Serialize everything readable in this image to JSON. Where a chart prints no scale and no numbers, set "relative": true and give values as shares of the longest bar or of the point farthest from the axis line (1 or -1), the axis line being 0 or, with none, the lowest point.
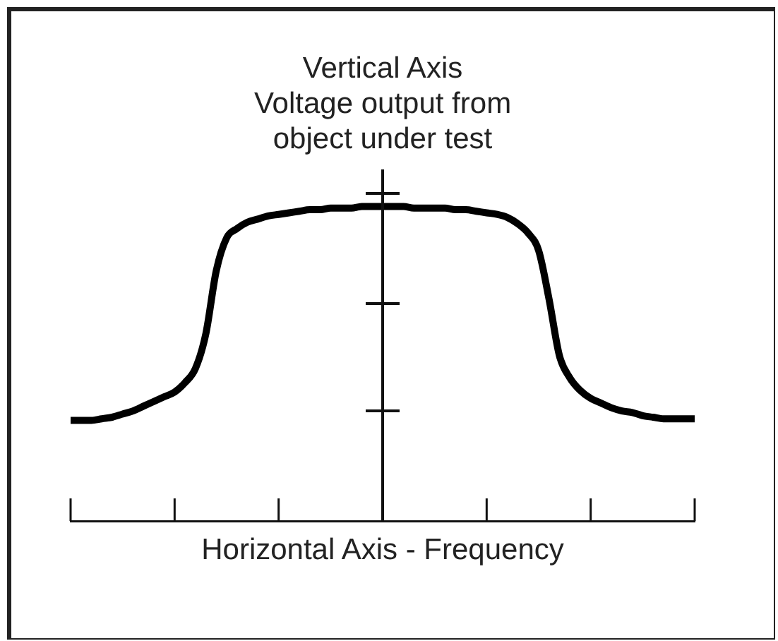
{
  "chart_data": {
    "type": "line",
    "xlabel": "Horizontal Axis - Frequency",
    "ylabel": "Vertical Axis\nVoltage output from\nobject under test",
    "relative": true,
    "line_style": "solid",
    "color": "#000000",
    "categories": [
      null,
      null,
      null,
      null,
      null,
      null,
      null,
      null,
      null,
      null,
      null,
      null,
      null,
      null,
      null,
      null,
      null,
      null,
      null,
      null,
      null,
      null,
      null,
      null,
      null,
      null,
      null,
      null,
      null,
      null,
      null,
      null,
      null,
      null,
      null,
      null,
      null,
      null,
      null,
      null,
      null,
      null,
      null,
      null,
      null,
      null,
      null,
      null,
      null,
      null,
      null,
      null,
      null,
      null,
      null,
      null,
      null,
      null,
      null,
      null,
      null
    ],
    "values": [
      0.32,
      0.32,
      0.32,
      0.325,
      0.33,
      0.34,
      0.35,
      0.365,
      0.38,
      0.395,
      0.41,
      0.44,
      0.485,
      0.595,
      0.795,
      0.9,
      0.93,
      0.95,
      0.96,
      0.97,
      0.975,
      0.98,
      0.985,
      0.99,
      0.99,
      0.995,
      0.995,
      0.995,
      1.0,
      1.0,
      1.0,
      1.0,
      1.0,
      0.995,
      0.995,
      0.995,
      0.995,
      0.99,
      0.99,
      0.985,
      0.98,
      0.975,
      0.965,
      0.945,
      0.915,
      0.86,
      0.705,
      0.525,
      0.455,
      0.415,
      0.39,
      0.375,
      0.36,
      0.35,
      0.345,
      0.335,
      0.33,
      0.325,
      0.325,
      0.325,
      0.325
    ]
  }
}
